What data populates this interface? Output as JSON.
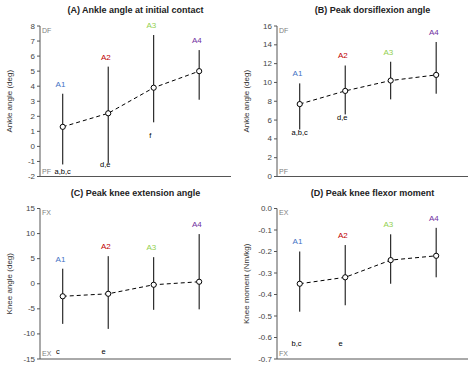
{
  "chart_data": [
    {
      "type": "line",
      "title": "(A) Ankle angle at initial contact",
      "y_label": "Ankle angle (deg)",
      "ylim": [
        -2,
        8
      ],
      "yticks": [
        -2,
        -1,
        0,
        1,
        2,
        3,
        4,
        5,
        6,
        7,
        8
      ],
      "xlim": [
        0.5,
        4.7
      ],
      "x": [
        1,
        2,
        3,
        4
      ],
      "categories": [
        "A1",
        "A2",
        "A3",
        "A4"
      ],
      "colors": [
        "#4472C4",
        "#C00000",
        "#92D050",
        "#7030A0"
      ],
      "values": [
        1.3,
        2.2,
        3.9,
        5.0
      ],
      "yerr_low": [
        2.5,
        3.3,
        2.3,
        1.9
      ],
      "yerr_high": [
        2.2,
        3.1,
        3.5,
        1.4
      ],
      "color": "#000000",
      "line_style": "dashed",
      "marker": "circle",
      "grid": false,
      "tick_labels": "y",
      "direction_labels": [
        {
          "text": "DF",
          "color": "#808080"
        },
        {
          "text": "PF",
          "color": "#808080"
        }
      ],
      "annotations": [
        {
          "text": "a,b,c",
          "x": 0.82,
          "y": -1.7,
          "color": "#000000"
        },
        {
          "text": "d,e",
          "x": 1.82,
          "y": -1.2,
          "color": "#000000"
        },
        {
          "text": "f",
          "x": 2.9,
          "y": 0.7,
          "color": "#000000"
        }
      ]
    },
    {
      "type": "line",
      "title": "(B) Peak dorsiflexion angle",
      "y_label": "Ankle angle (deg)",
      "ylim": [
        0,
        16
      ],
      "yticks": [
        0,
        2,
        4,
        6,
        8,
        10,
        12,
        14,
        16
      ],
      "xlim": [
        0.5,
        4.7
      ],
      "x": [
        1,
        2,
        3,
        4
      ],
      "categories": [
        "A1",
        "A2",
        "A3",
        "A4"
      ],
      "colors": [
        "#4472C4",
        "#C00000",
        "#92D050",
        "#7030A0"
      ],
      "values": [
        7.7,
        9.1,
        10.2,
        10.8
      ],
      "yerr_low": [
        2.7,
        2.5,
        2.0,
        2.0
      ],
      "yerr_high": [
        2.2,
        2.7,
        2.0,
        3.5
      ],
      "color": "#000000",
      "line_style": "dashed",
      "marker": "circle",
      "grid": false,
      "tick_labels": "y",
      "direction_labels": [
        {
          "text": "DF",
          "color": "#808080"
        },
        {
          "text": "PF",
          "color": "#808080"
        }
      ],
      "annotations": [
        {
          "text": "a,b,c",
          "x": 0.82,
          "y": 4.7,
          "color": "#000000"
        },
        {
          "text": "d,e",
          "x": 1.82,
          "y": 6.3,
          "color": "#000000"
        }
      ]
    },
    {
      "type": "line",
      "title": "(C) Peak knee extension angle",
      "y_label": "Knee angle (deg)",
      "ylim": [
        -15,
        15
      ],
      "yticks": [
        -15,
        -10,
        -5,
        0,
        5,
        10,
        15
      ],
      "xlim": [
        0.5,
        4.7
      ],
      "x": [
        1,
        2,
        3,
        4
      ],
      "categories": [
        "A1",
        "A2",
        "A3",
        "A4"
      ],
      "colors": [
        "#4472C4",
        "#C00000",
        "#92D050",
        "#7030A0"
      ],
      "values": [
        -2.5,
        -2.0,
        -0.2,
        0.4
      ],
      "yerr_low": [
        5.5,
        7.0,
        5.0,
        5.5
      ],
      "yerr_high": [
        5.5,
        7.5,
        5.5,
        9.5
      ],
      "color": "#000000",
      "line_style": "dashed",
      "marker": "circle",
      "grid": false,
      "tick_labels": "y",
      "direction_labels": [
        {
          "text": "FX",
          "color": "#808080"
        },
        {
          "text": "EX",
          "color": "#808080"
        }
      ],
      "annotations": [
        {
          "text": "c",
          "x": 0.85,
          "y": -13.5,
          "color": "#000000"
        },
        {
          "text": "e",
          "x": 1.85,
          "y": -13.5,
          "color": "#000000"
        }
      ]
    },
    {
      "type": "line",
      "title": "(D) Peak knee flexor moment",
      "y_label": "Knee moment (Nm/kg)",
      "ylim": [
        -0.7,
        0.0
      ],
      "yticks": [
        -0.7,
        -0.6,
        -0.5,
        -0.4,
        -0.3,
        -0.2,
        -0.1,
        {
          "value": 0.0,
          "label": "0.0"
        }
      ],
      "xlim": [
        0.5,
        4.7
      ],
      "x": [
        1,
        2,
        3,
        4
      ],
      "categories": [
        "A1",
        "A2",
        "A3",
        "A4"
      ],
      "colors": [
        "#4472C4",
        "#C00000",
        "#92D050",
        "#7030A0"
      ],
      "values": [
        -0.35,
        -0.32,
        -0.24,
        -0.22
      ],
      "yerr_low": [
        0.13,
        0.13,
        0.11,
        0.1
      ],
      "yerr_high": [
        0.15,
        0.15,
        0.12,
        0.13
      ],
      "color": "#000000",
      "line_style": "dashed",
      "marker": "circle",
      "grid": false,
      "tick_labels": "y",
      "direction_labels": [
        {
          "text": "EX",
          "color": "#808080"
        },
        {
          "text": "FX",
          "color": "#808080"
        }
      ],
      "annotations": [
        {
          "text": "b,c",
          "x": 0.82,
          "y": -0.63,
          "color": "#000000"
        },
        {
          "text": "e",
          "x": 1.85,
          "y": -0.63,
          "color": "#000000"
        }
      ]
    }
  ]
}
